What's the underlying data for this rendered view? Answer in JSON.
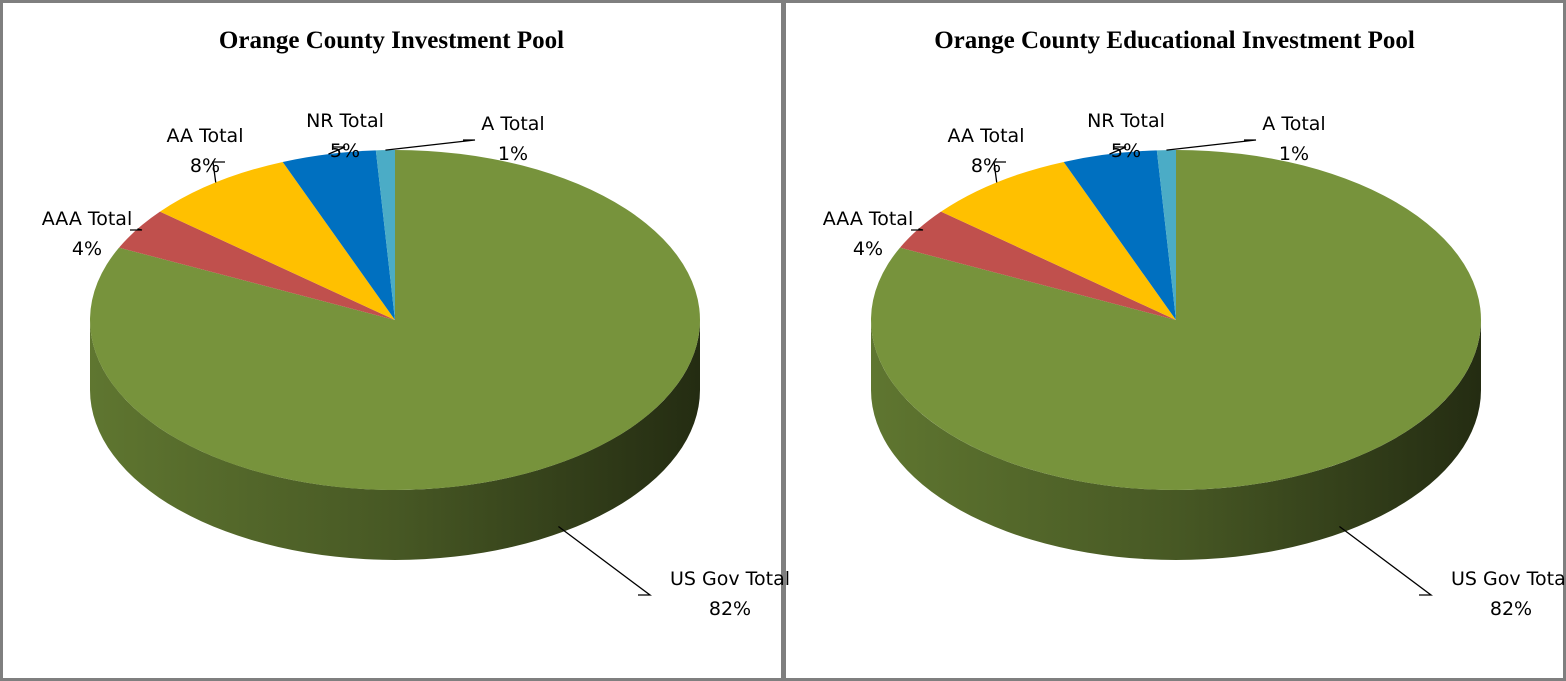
{
  "chart_data": [
    {
      "type": "pie",
      "title": "Orange County Investment Pool",
      "categories": [
        "US Gov Total",
        "AAA Total",
        "AA Total",
        "NR Total",
        "A Total"
      ],
      "values": [
        82,
        4,
        8,
        5,
        1
      ],
      "value_labels": [
        "82%",
        "4%",
        "8%",
        "5%",
        "1%"
      ],
      "colors": [
        "#77933c",
        "#c0504d",
        "#ffc000",
        "#0070c0",
        "#4bacc6"
      ]
    },
    {
      "type": "pie",
      "title": "Orange County Educational Investment Pool",
      "categories": [
        "US Gov Total",
        "AAA Total",
        "AA Total",
        "NR Total",
        "A Total"
      ],
      "values": [
        82,
        4,
        8,
        5,
        1
      ],
      "value_labels": [
        "82%",
        "4%",
        "8%",
        "5%",
        "1%"
      ],
      "colors": [
        "#77933c",
        "#c0504d",
        "#ffc000",
        "#0070c0",
        "#4bacc6"
      ]
    }
  ]
}
